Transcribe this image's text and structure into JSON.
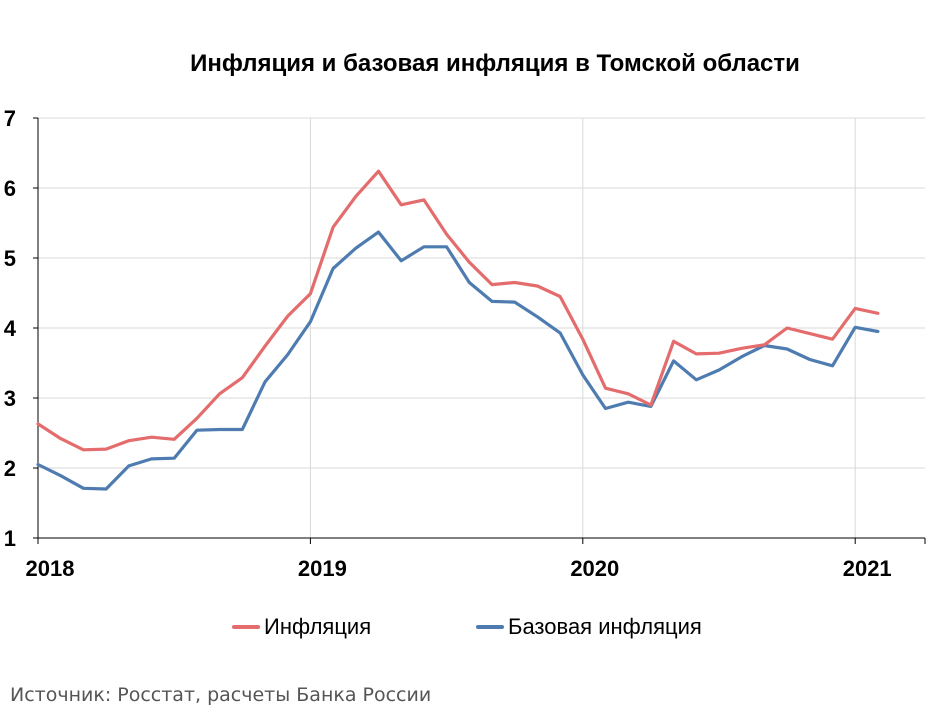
{
  "chart_data": {
    "type": "line",
    "title": "Инфляция и базовая инфляция в Томской области",
    "xlabel": "",
    "ylabel": "",
    "ylim": [
      1,
      7
    ],
    "yticks": [
      1,
      2,
      3,
      4,
      5,
      6,
      7
    ],
    "xtick_labels": [
      "2018",
      "2019",
      "2020",
      "2021"
    ],
    "grid": true,
    "legend_position": "bottom",
    "x": [
      "2018-01",
      "2018-02",
      "2018-03",
      "2018-04",
      "2018-05",
      "2018-06",
      "2018-07",
      "2018-08",
      "2018-09",
      "2018-10",
      "2018-11",
      "2018-12",
      "2019-01",
      "2019-02",
      "2019-03",
      "2019-04",
      "2019-05",
      "2019-06",
      "2019-07",
      "2019-08",
      "2019-09",
      "2019-10",
      "2019-11",
      "2019-12",
      "2020-01",
      "2020-02",
      "2020-03",
      "2020-04",
      "2020-05",
      "2020-06",
      "2020-07",
      "2020-08",
      "2020-09",
      "2020-10",
      "2020-11",
      "2020-12",
      "2021-01",
      "2021-02"
    ],
    "series": [
      {
        "name": "Инфляция",
        "color": "#E46C6C",
        "values": [
          2.63,
          2.42,
          2.26,
          2.27,
          2.39,
          2.44,
          2.41,
          2.71,
          3.06,
          3.29,
          3.74,
          4.17,
          4.49,
          5.44,
          5.88,
          6.24,
          5.76,
          5.83,
          5.34,
          4.94,
          4.62,
          4.65,
          4.6,
          4.45,
          3.84,
          3.14,
          3.06,
          2.9,
          3.81,
          3.63,
          3.64,
          3.71,
          3.76,
          4.0,
          3.92,
          3.84,
          4.28,
          4.21
        ]
      },
      {
        "name": "Базовая инфляция",
        "color": "#4F7CB0",
        "values": [
          2.05,
          1.89,
          1.71,
          1.7,
          2.03,
          2.13,
          2.14,
          2.54,
          2.55,
          2.55,
          3.23,
          3.62,
          4.09,
          4.85,
          5.14,
          5.37,
          4.96,
          5.16,
          5.16,
          4.65,
          4.38,
          4.37,
          4.16,
          3.93,
          3.33,
          2.85,
          2.94,
          2.88,
          3.53,
          3.26,
          3.4,
          3.59,
          3.75,
          3.7,
          3.55,
          3.46,
          4.01,
          3.95
        ]
      }
    ]
  },
  "source": "Источник: Росстат, расчеты Банка России"
}
